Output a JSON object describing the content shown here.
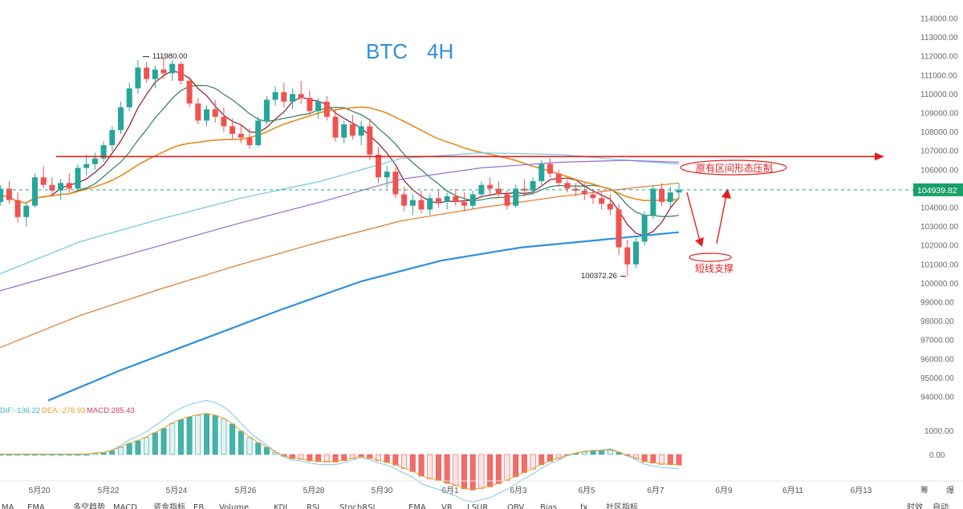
{
  "chart_data": {
    "type": "candlestick",
    "title": "BTC",
    "timeframe": "4H",
    "symbol": "BTC",
    "grid": false,
    "y_ticks": [
      114000,
      113000,
      112000,
      111000,
      110000,
      109000,
      108000,
      107000,
      106000,
      105000,
      104000,
      103000,
      102000,
      101000,
      100000,
      99000,
      98000,
      97000,
      96000,
      95000,
      94000
    ],
    "y_tick_labels": [
      "114000.00",
      "113000.00",
      "112000.00",
      "111000.00",
      "110000.00",
      "109000.00",
      "108000.00",
      "107000.00",
      "106000.00",
      "105000.00",
      "104000.00",
      "103000.00",
      "102000.00",
      "101000.00",
      "100000.00",
      "99000.00",
      "98000.00",
      "97000.00",
      "96000.00",
      "95000.00",
      "94000.00"
    ],
    "x_ticks": [
      "5月20",
      "5月22",
      "5月24",
      "5月26",
      "5月28",
      "5月30",
      "6月1",
      "6月3",
      "6月5",
      "6月7",
      "6月9",
      "6月11",
      "6月13"
    ],
    "x_axis_extra": [
      "筹",
      "爆"
    ],
    "last_price": "104939.82",
    "high_label": "111980.00",
    "low_label": "100372.26",
    "resistance_level": 106700,
    "annotations": {
      "resistance": "原有区间形态压制",
      "support": "短线支撑"
    },
    "macd": {
      "dif_label": "DIF:-136.22",
      "dea_label": "DEA:-278.93",
      "macd_label": "MACD:285.43",
      "y_ticks": [
        "1000.00",
        "0.00"
      ]
    },
    "bottom_tabs": [
      "MA",
      "EMA",
      "",
      "多空趋势",
      "MACD",
      "资金指标",
      "EB",
      "Volume",
      "KDJ",
      "RSI",
      "StochRSI",
      "EMA",
      "VR",
      "LSUR",
      "OBV",
      "Bias",
      "fx",
      "社区指标"
    ],
    "bottom_right": [
      "时效",
      "自动"
    ],
    "ohlc": [
      [
        104000,
        104500,
        103600,
        104300
      ],
      [
        104300,
        105200,
        104100,
        105000
      ],
      [
        105000,
        105400,
        104200,
        104400
      ],
      [
        104400,
        104800,
        103200,
        103500
      ],
      [
        103500,
        104300,
        103000,
        104100
      ],
      [
        104100,
        105800,
        104000,
        105600
      ],
      [
        105600,
        106200,
        105000,
        105200
      ],
      [
        105200,
        105600,
        104600,
        104900
      ],
      [
        104900,
        105500,
        104400,
        105300
      ],
      [
        105300,
        105800,
        104800,
        105000
      ],
      [
        105000,
        106300,
        104900,
        106100
      ],
      [
        106100,
        106800,
        105700,
        106300
      ],
      [
        106300,
        106900,
        106000,
        106600
      ],
      [
        106600,
        107500,
        106400,
        107300
      ],
      [
        107300,
        108300,
        107000,
        108100
      ],
      [
        108100,
        109600,
        107900,
        109300
      ],
      [
        109300,
        110600,
        109100,
        110300
      ],
      [
        110300,
        111800,
        110000,
        111400
      ],
      [
        111400,
        111700,
        110600,
        110800
      ],
      [
        110800,
        111500,
        110300,
        111300
      ],
      [
        111300,
        111980,
        110800,
        111100
      ],
      [
        111100,
        111800,
        110700,
        111600
      ],
      [
        111600,
        111700,
        110500,
        110700
      ],
      [
        110700,
        110900,
        109300,
        109500
      ],
      [
        109500,
        109800,
        108400,
        108600
      ],
      [
        108600,
        109400,
        108300,
        109200
      ],
      [
        109200,
        109700,
        108500,
        108800
      ],
      [
        108800,
        109300,
        108000,
        108300
      ],
      [
        108300,
        108700,
        107600,
        107900
      ],
      [
        107900,
        108400,
        107400,
        107700
      ],
      [
        107700,
        108200,
        107100,
        107300
      ],
      [
        107300,
        108800,
        107200,
        108600
      ],
      [
        108600,
        109900,
        108400,
        109700
      ],
      [
        109700,
        110400,
        109400,
        110100
      ],
      [
        110100,
        110600,
        109300,
        109600
      ],
      [
        109600,
        110300,
        109200,
        110000
      ],
      [
        110000,
        110700,
        109500,
        109800
      ],
      [
        109800,
        110200,
        108900,
        109100
      ],
      [
        109100,
        109800,
        108700,
        109600
      ],
      [
        109600,
        109900,
        108600,
        108800
      ],
      [
        108800,
        109200,
        107500,
        107700
      ],
      [
        107700,
        108600,
        107400,
        108400
      ],
      [
        108400,
        108900,
        107600,
        107800
      ],
      [
        107800,
        108600,
        107300,
        108300
      ],
      [
        108300,
        108700,
        106500,
        106800
      ],
      [
        106800,
        107200,
        105300,
        105600
      ],
      [
        105600,
        106200,
        105000,
        105900
      ],
      [
        105900,
        106100,
        104500,
        104700
      ],
      [
        104700,
        105100,
        103800,
        104100
      ],
      [
        104100,
        104700,
        103600,
        104400
      ],
      [
        104400,
        104900,
        103700,
        103900
      ],
      [
        103900,
        104700,
        103600,
        104500
      ],
      [
        104500,
        104900,
        104000,
        104300
      ],
      [
        104300,
        104800,
        103900,
        104600
      ],
      [
        104600,
        105000,
        104100,
        104300
      ],
      [
        104300,
        104800,
        103800,
        104100
      ],
      [
        104100,
        104900,
        103900,
        104700
      ],
      [
        104700,
        105400,
        104500,
        105200
      ],
      [
        105200,
        105600,
        104700,
        105000
      ],
      [
        105000,
        105400,
        104500,
        104700
      ],
      [
        104700,
        104900,
        103900,
        104100
      ],
      [
        104100,
        105200,
        104000,
        105000
      ],
      [
        105000,
        105500,
        104600,
        104900
      ],
      [
        104900,
        105600,
        104700,
        105400
      ],
      [
        105400,
        106500,
        105200,
        106300
      ],
      [
        106300,
        106600,
        105600,
        105800
      ],
      [
        105800,
        106000,
        105100,
        105300
      ],
      [
        105300,
        105500,
        104800,
        105000
      ],
      [
        105000,
        105300,
        104600,
        104900
      ],
      [
        104900,
        105300,
        104400,
        104700
      ],
      [
        104700,
        105000,
        104200,
        104500
      ],
      [
        104500,
        104900,
        103900,
        104200
      ],
      [
        104200,
        104700,
        103600,
        103900
      ],
      [
        103900,
        104200,
        101500,
        101900
      ],
      [
        101900,
        102300,
        100372,
        101000
      ],
      [
        101000,
        102400,
        100800,
        102200
      ],
      [
        102200,
        103800,
        102000,
        103600
      ],
      [
        103600,
        105200,
        103400,
        105000
      ],
      [
        105000,
        105300,
        104100,
        104300
      ],
      [
        104300,
        105100,
        104000,
        104800
      ],
      [
        104800,
        105300,
        104500,
        104939
      ]
    ]
  }
}
